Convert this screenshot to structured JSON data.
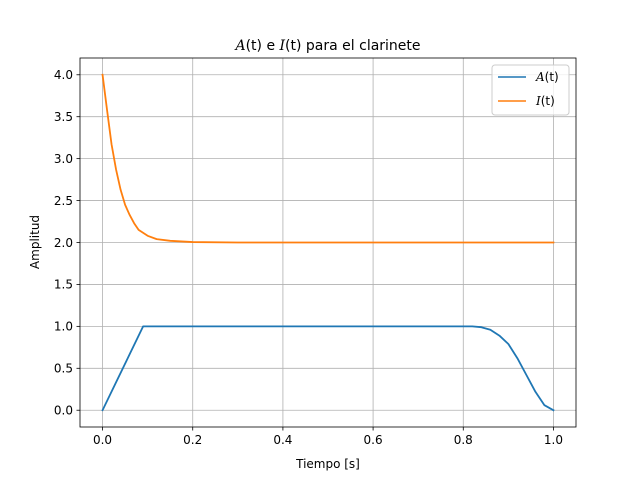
{
  "chart_data": {
    "type": "line",
    "title": {
      "prefix_var": "A",
      "prefix_arg": "(t)",
      "middle": " e ",
      "suffix_var": "I",
      "suffix_arg": "(t)",
      "tail": " para el clarinete"
    },
    "xlabel": "Tiempo [s]",
    "ylabel": "Amplitud",
    "xlim": [
      -0.05,
      1.05
    ],
    "ylim": [
      -0.2,
      4.2
    ],
    "xticks": [
      0.0,
      0.2,
      0.4,
      0.6,
      0.8,
      1.0
    ],
    "xtick_labels": [
      "0.0",
      "0.2",
      "0.4",
      "0.6",
      "0.8",
      "1.0"
    ],
    "yticks": [
      0.0,
      0.5,
      1.0,
      1.5,
      2.0,
      2.5,
      3.0,
      3.5,
      4.0
    ],
    "ytick_labels": [
      "0.0",
      "0.5",
      "1.0",
      "1.5",
      "2.0",
      "2.5",
      "3.0",
      "3.5",
      "4.0"
    ],
    "grid": true,
    "legend_position": "top-right",
    "series": [
      {
        "name": "A(t)",
        "legend_var": "A",
        "legend_arg": "(t)",
        "color": "#1f77b4",
        "x": [
          0.0,
          0.09,
          0.82,
          0.84,
          0.86,
          0.88,
          0.9,
          0.92,
          0.94,
          0.96,
          0.98,
          1.0
        ],
        "y": [
          0.0,
          1.0,
          1.0,
          0.99,
          0.96,
          0.89,
          0.79,
          0.62,
          0.42,
          0.22,
          0.06,
          0.0
        ]
      },
      {
        "name": "I(t)",
        "legend_var": "I",
        "legend_arg": "(t)",
        "color": "#ff7f0e",
        "x": [
          0.0,
          0.01,
          0.02,
          0.03,
          0.04,
          0.05,
          0.06,
          0.07,
          0.08,
          0.1,
          0.12,
          0.15,
          0.2,
          0.3,
          1.0
        ],
        "y": [
          4.0,
          3.58,
          3.17,
          2.87,
          2.63,
          2.45,
          2.33,
          2.23,
          2.15,
          2.08,
          2.04,
          2.02,
          2.005,
          2.0,
          2.0
        ]
      }
    ]
  }
}
